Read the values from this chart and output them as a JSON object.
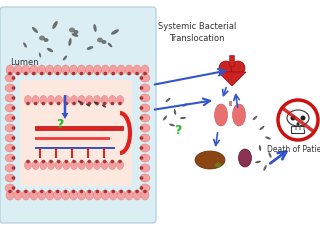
{
  "bg_color": "#ffffff",
  "lumen_bg": "#daeef3",
  "intestine_inner_bg": "#fde8e0",
  "lumen_label": "Lumen",
  "title_text": "Systemic Bacterial\nTranslocation",
  "death_label": "Death of Patient",
  "question_color": "#22bb22",
  "arrow_color": "#3355cc",
  "bacteria_color": "#555555",
  "intestine_pink": "#f4a0a0",
  "intestine_dark": "#aa3333",
  "blood_red": "#dd2222",
  "blood_blue": "#3355cc",
  "skull_red": "#cc1111",
  "heart_color": "#cc2222",
  "lung_color": "#e87070",
  "liver_color": "#8B4513",
  "kidney_color": "#8B3252"
}
